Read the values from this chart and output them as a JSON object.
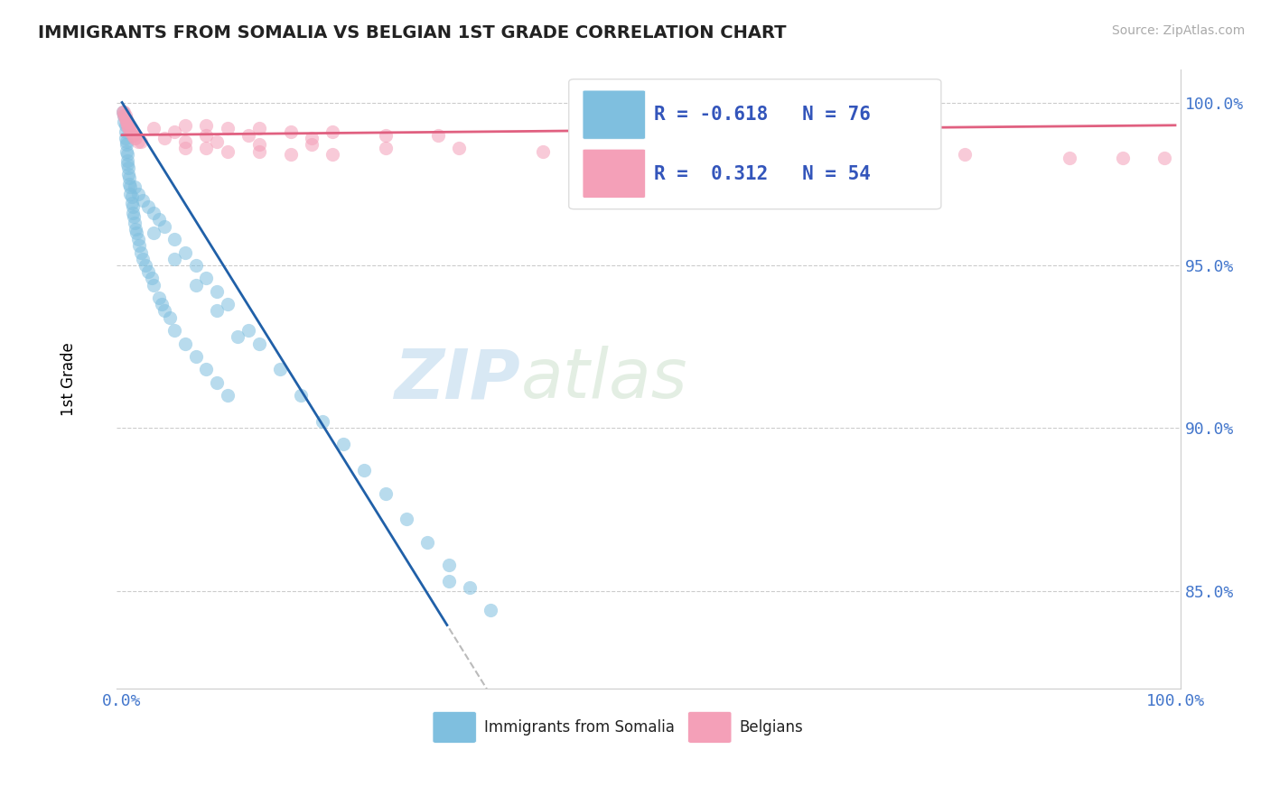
{
  "title": "IMMIGRANTS FROM SOMALIA VS BELGIAN 1ST GRADE CORRELATION CHART",
  "source": "Source: ZipAtlas.com",
  "ylabel": "1st Grade",
  "blue_R": -0.618,
  "blue_N": 76,
  "pink_R": 0.312,
  "pink_N": 54,
  "blue_color": "#7fbfdf",
  "pink_color": "#f4a0b8",
  "blue_line_color": "#2060a8",
  "pink_line_color": "#e06080",
  "watermark_zip": "ZIP",
  "watermark_atlas": "atlas",
  "legend_label_blue": "Immigrants from Somalia",
  "legend_label_pink": "Belgians",
  "ytick_vals": [
    0.85,
    0.9,
    0.95,
    1.0
  ],
  "ytick_labels": [
    "85.0%",
    "90.0%",
    "95.0%",
    "100.0%"
  ],
  "xlim": [
    -0.005,
    1.005
  ],
  "ylim": [
    0.82,
    1.01
  ],
  "blue_x": [
    0.001,
    0.002,
    0.002,
    0.003,
    0.003,
    0.003,
    0.004,
    0.004,
    0.004,
    0.005,
    0.005,
    0.005,
    0.006,
    0.006,
    0.007,
    0.007,
    0.008,
    0.008,
    0.009,
    0.009,
    0.01,
    0.01,
    0.011,
    0.012,
    0.013,
    0.014,
    0.015,
    0.016,
    0.018,
    0.02,
    0.022,
    0.025,
    0.028,
    0.03,
    0.035,
    0.038,
    0.04,
    0.045,
    0.05,
    0.06,
    0.07,
    0.08,
    0.09,
    0.1,
    0.012,
    0.015,
    0.02,
    0.025,
    0.03,
    0.035,
    0.04,
    0.05,
    0.06,
    0.07,
    0.08,
    0.09,
    0.1,
    0.12,
    0.13,
    0.15,
    0.17,
    0.19,
    0.21,
    0.23,
    0.25,
    0.27,
    0.29,
    0.31,
    0.33,
    0.35,
    0.03,
    0.05,
    0.07,
    0.09,
    0.11,
    0.31
  ],
  "blue_y": [
    0.997,
    0.996,
    0.994,
    0.993,
    0.991,
    0.989,
    0.988,
    0.987,
    0.985,
    0.984,
    0.982,
    0.981,
    0.98,
    0.978,
    0.977,
    0.975,
    0.974,
    0.972,
    0.971,
    0.969,
    0.968,
    0.966,
    0.965,
    0.963,
    0.961,
    0.96,
    0.958,
    0.956,
    0.954,
    0.952,
    0.95,
    0.948,
    0.946,
    0.944,
    0.94,
    0.938,
    0.936,
    0.934,
    0.93,
    0.926,
    0.922,
    0.918,
    0.914,
    0.91,
    0.974,
    0.972,
    0.97,
    0.968,
    0.966,
    0.964,
    0.962,
    0.958,
    0.954,
    0.95,
    0.946,
    0.942,
    0.938,
    0.93,
    0.926,
    0.918,
    0.91,
    0.902,
    0.895,
    0.887,
    0.88,
    0.872,
    0.865,
    0.858,
    0.851,
    0.844,
    0.96,
    0.952,
    0.944,
    0.936,
    0.928,
    0.853
  ],
  "pink_x": [
    0.001,
    0.002,
    0.002,
    0.003,
    0.003,
    0.004,
    0.004,
    0.005,
    0.005,
    0.006,
    0.006,
    0.007,
    0.008,
    0.009,
    0.01,
    0.011,
    0.012,
    0.013,
    0.015,
    0.018,
    0.06,
    0.08,
    0.1,
    0.13,
    0.16,
    0.2,
    0.25,
    0.3,
    0.06,
    0.08,
    0.1,
    0.13,
    0.16,
    0.2,
    0.04,
    0.06,
    0.09,
    0.13,
    0.18,
    0.25,
    0.32,
    0.4,
    0.5,
    0.6,
    0.7,
    0.8,
    0.9,
    0.95,
    0.99,
    0.03,
    0.05,
    0.08,
    0.12,
    0.18
  ],
  "pink_y": [
    0.997,
    0.997,
    0.996,
    0.996,
    0.995,
    0.995,
    0.994,
    0.994,
    0.993,
    0.993,
    0.992,
    0.992,
    0.991,
    0.991,
    0.99,
    0.99,
    0.989,
    0.989,
    0.988,
    0.988,
    0.993,
    0.993,
    0.992,
    0.992,
    0.991,
    0.991,
    0.99,
    0.99,
    0.986,
    0.986,
    0.985,
    0.985,
    0.984,
    0.984,
    0.989,
    0.988,
    0.988,
    0.987,
    0.987,
    0.986,
    0.986,
    0.985,
    0.985,
    0.984,
    0.984,
    0.984,
    0.983,
    0.983,
    0.983,
    0.992,
    0.991,
    0.99,
    0.99,
    0.989
  ]
}
